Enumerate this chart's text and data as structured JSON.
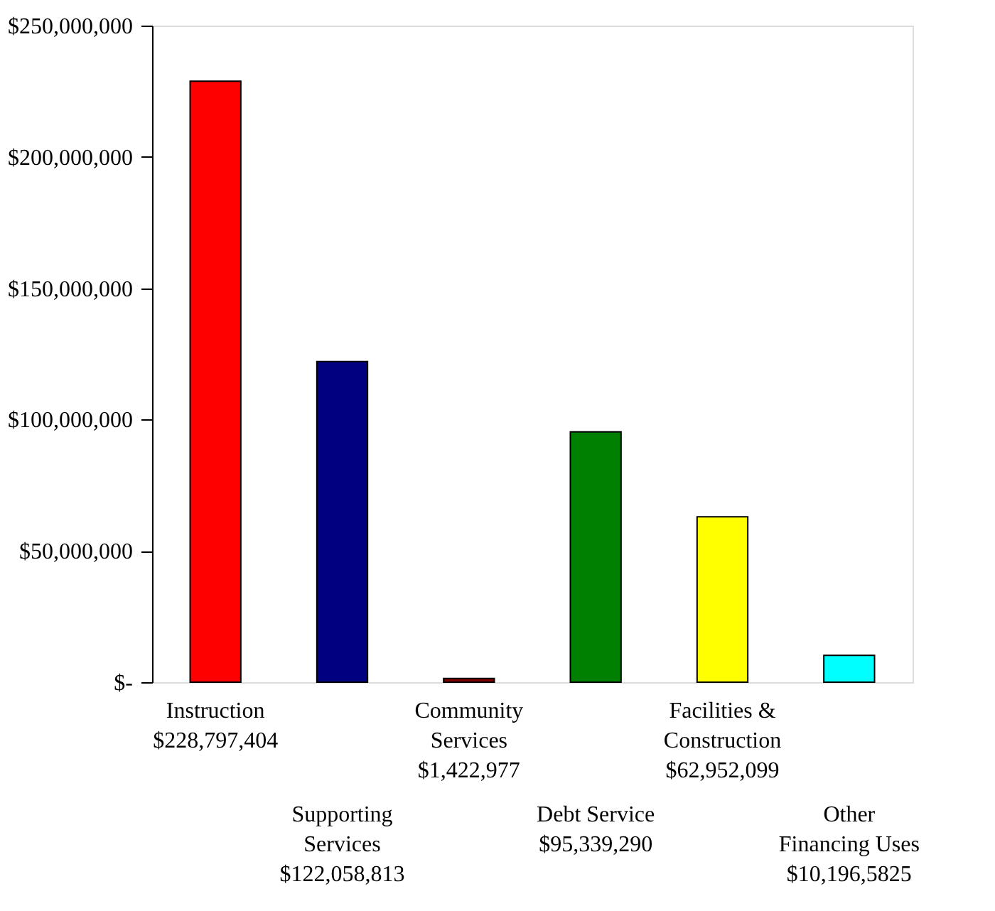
{
  "chart_data": {
    "type": "bar",
    "categories": [
      "Instruction $228,797,404",
      "Supporting Services $122,058,813",
      "Community Services $1,422,977",
      "Debt Service $95,339,290",
      "Facilities & Construction $62,952,099",
      "Other Financing Uses $10,196,5825"
    ],
    "values": [
      228797404,
      122058813,
      1422977,
      95339290,
      62952099,
      10196582.5
    ],
    "colors": [
      "#ff0000",
      "#000080",
      "#800000",
      "#008000",
      "#ffff00",
      "#00ffff"
    ],
    "ylim": [
      0,
      250000000
    ],
    "yticks": [
      {
        "value": 0,
        "label": "$-"
      },
      {
        "value": 50000000,
        "label": "$50,000,000"
      },
      {
        "value": 100000000,
        "label": "$100,000,000"
      },
      {
        "value": 150000000,
        "label": "$150,000,000"
      },
      {
        "value": 200000000,
        "label": "$200,000,000"
      },
      {
        "value": 250000000,
        "label": "$250,000,000"
      }
    ],
    "grid": false
  }
}
